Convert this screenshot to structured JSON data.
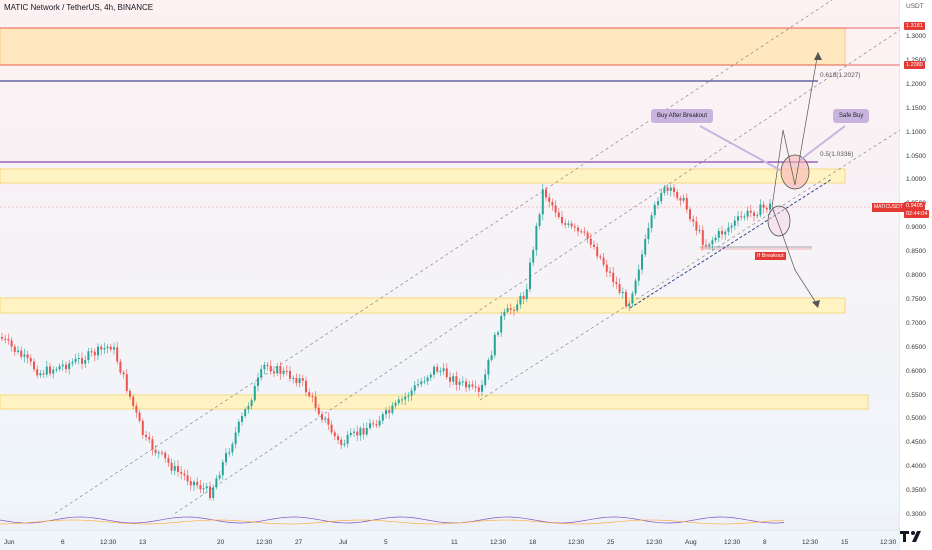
{
  "header": {
    "title": "MATIC Network / TetherUS, 4h, BINANCE"
  },
  "scale": {
    "currency": "USDT",
    "ticks": [
      "1.3000",
      "1.2500",
      "1.2000",
      "1.1500",
      "1.1000",
      "1.0500",
      "1.0000",
      "0.9500",
      "0.9000",
      "0.8500",
      "0.8000",
      "0.7500",
      "0.7000",
      "0.6500",
      "0.6000",
      "0.5500",
      "0.5000",
      "0.4500",
      "0.4000",
      "0.3500",
      "0.3000"
    ],
    "tags": {
      "top": "1.3181",
      "upper": "1.2380",
      "price": "0.9405",
      "countdown": "02:44:04",
      "symbol": "MATICUSDT"
    }
  },
  "time_axis": [
    "Jun",
    "6",
    "12:30",
    "13",
    "20",
    "12:30",
    "27",
    "Jul",
    "5",
    "11",
    "12:30",
    "18",
    "12:30",
    "25",
    "12:30",
    "Aug",
    "12:30",
    "8",
    "12:30",
    "15",
    "12:30"
  ],
  "annotations": {
    "fib_618": "0.618(1.2027)",
    "fib_5": "0.5(1.0336)",
    "buy_after_breakout": "Buy After Breakout",
    "safe_buy": "Safe Buy",
    "if_breakout": "If Breakout"
  },
  "colors": {
    "up": "#26a69a",
    "down": "#ef5350",
    "zone_fill": "#fff3c4",
    "zone_border": "#f5c542",
    "top_zone_fill": "#ffe8c0",
    "accent_red": "#e53935",
    "navy": "#1a237e",
    "purple": "#6a1b9a"
  },
  "icons": [
    "tradingview-logo-icon"
  ]
}
